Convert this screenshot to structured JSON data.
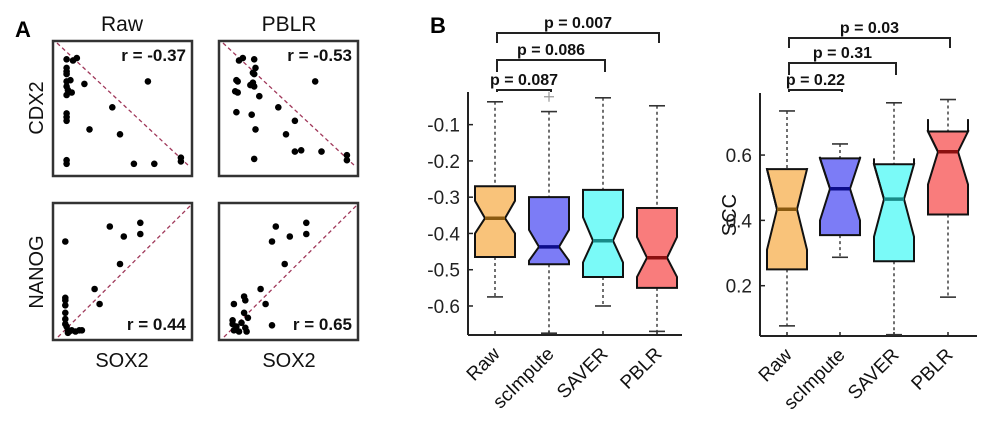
{
  "figure": {
    "panel_letters": [
      "A",
      "B"
    ]
  },
  "chart_data": [
    {
      "type": "scatter",
      "panel": "A",
      "column_titles": [
        "Raw",
        "PBLR"
      ],
      "row_labels": [
        "CDX2",
        "NANOG"
      ],
      "xlabel": "SOX2",
      "subplots": [
        {
          "title": "Raw",
          "ylabel": "CDX2",
          "xlabel": "SOX2",
          "r_label": "r = -0.37",
          "r": -0.37,
          "trend": "negative",
          "points": [
            [
              0.06,
              0.9
            ],
            [
              0.11,
              0.89
            ],
            [
              0.14,
              0.91
            ],
            [
              0.06,
              0.83
            ],
            [
              0.06,
              0.8
            ],
            [
              0.06,
              0.78
            ],
            [
              0.06,
              0.72
            ],
            [
              0.06,
              0.68
            ],
            [
              0.09,
              0.73
            ],
            [
              0.07,
              0.65
            ],
            [
              0.1,
              0.63
            ],
            [
              0.06,
              0.61
            ],
            [
              0.2,
              0.7
            ],
            [
              0.7,
              0.72
            ],
            [
              0.42,
              0.51
            ],
            [
              0.06,
              0.46
            ],
            [
              0.06,
              0.43
            ],
            [
              0.06,
              0.4
            ],
            [
              0.24,
              0.33
            ],
            [
              0.48,
              0.29
            ],
            [
              0.06,
              0.08
            ],
            [
              0.06,
              0.05
            ],
            [
              0.59,
              0.05
            ],
            [
              0.75,
              0.05
            ],
            [
              0.96,
              0.1
            ],
            [
              0.96,
              0.07
            ]
          ]
        },
        {
          "title": "PBLR",
          "ylabel": "CDX2",
          "xlabel": "SOX2",
          "r_label": "r = -0.53",
          "r": -0.53,
          "trend": "negative",
          "points": [
            [
              0.11,
              0.89
            ],
            [
              0.14,
              0.91
            ],
            [
              0.23,
              0.9
            ],
            [
              0.24,
              0.83
            ],
            [
              0.22,
              0.79
            ],
            [
              0.23,
              0.78
            ],
            [
              0.09,
              0.73
            ],
            [
              0.1,
              0.72
            ],
            [
              0.2,
              0.69
            ],
            [
              0.22,
              0.71
            ],
            [
              0.23,
              0.68
            ],
            [
              0.08,
              0.64
            ],
            [
              0.1,
              0.63
            ],
            [
              0.27,
              0.6
            ],
            [
              0.71,
              0.72
            ],
            [
              0.42,
              0.51
            ],
            [
              0.09,
              0.47
            ],
            [
              0.21,
              0.45
            ],
            [
              0.55,
              0.4
            ],
            [
              0.24,
              0.33
            ],
            [
              0.48,
              0.29
            ],
            [
              0.55,
              0.15
            ],
            [
              0.6,
              0.16
            ],
            [
              0.76,
              0.15
            ],
            [
              0.23,
              0.09
            ],
            [
              0.96,
              0.12
            ],
            [
              0.96,
              0.08
            ]
          ]
        },
        {
          "title": "Raw",
          "ylabel": "NANOG",
          "xlabel": "SOX2",
          "r_label": "r = 0.44",
          "r": 0.44,
          "trend": "positive",
          "points": [
            [
              0.05,
              0.74
            ],
            [
              0.4,
              0.86
            ],
            [
              0.51,
              0.78
            ],
            [
              0.64,
              0.89
            ],
            [
              0.64,
              0.8
            ],
            [
              0.48,
              0.56
            ],
            [
              0.28,
              0.36
            ],
            [
              0.32,
              0.24
            ],
            [
              0.05,
              0.29
            ],
            [
              0.05,
              0.27
            ],
            [
              0.05,
              0.23
            ],
            [
              0.05,
              0.17
            ],
            [
              0.05,
              0.12
            ],
            [
              0.05,
              0.08
            ],
            [
              0.06,
              0.06
            ],
            [
              0.07,
              0.03
            ],
            [
              0.08,
              0.02
            ],
            [
              0.1,
              0.03
            ],
            [
              0.13,
              0.02
            ],
            [
              0.16,
              0.03
            ],
            [
              0.18,
              0.03
            ],
            [
              0.07,
              0.01
            ]
          ]
        },
        {
          "title": "PBLR",
          "ylabel": "NANOG",
          "xlabel": "SOX2",
          "r_label": "r = 0.65",
          "r": 0.65,
          "trend": "positive",
          "points": [
            [
              0.4,
              0.86
            ],
            [
              0.37,
              0.74
            ],
            [
              0.51,
              0.78
            ],
            [
              0.64,
              0.89
            ],
            [
              0.64,
              0.8
            ],
            [
              0.47,
              0.56
            ],
            [
              0.28,
              0.36
            ],
            [
              0.32,
              0.24
            ],
            [
              0.07,
              0.24
            ],
            [
              0.15,
              0.3
            ],
            [
              0.16,
              0.27
            ],
            [
              0.15,
              0.17
            ],
            [
              0.06,
              0.11
            ],
            [
              0.06,
              0.08
            ],
            [
              0.09,
              0.06
            ],
            [
              0.13,
              0.09
            ],
            [
              0.18,
              0.13
            ],
            [
              0.16,
              0.05
            ],
            [
              0.17,
              0.02
            ],
            [
              0.11,
              0.02
            ],
            [
              0.07,
              0.03
            ],
            [
              0.37,
              0.07
            ]
          ]
        }
      ]
    },
    {
      "type": "boxplot",
      "panel": "B",
      "xlabel": "",
      "ylabel": "",
      "categories": [
        "Raw",
        "scImpute",
        "SAVER",
        "PBLR"
      ],
      "ylim": [
        -0.68,
        -0.01
      ],
      "yticks": [
        -0.6,
        -0.5,
        -0.4,
        -0.3,
        -0.2,
        -0.1
      ],
      "ytick_labels": [
        "-0.6",
        "-0.5",
        "-0.4",
        "-0.3",
        "-0.2",
        "-0.1"
      ],
      "colors": [
        "#F9C37A",
        "#7C7CF6",
        "#7AFAF8",
        "#F97C7C"
      ],
      "median_colors": [
        "#8A5A10",
        "#0D0D8A",
        "#188A88",
        "#8A1010"
      ],
      "boxes": [
        {
          "name": "Raw",
          "whisker_low": -0.575,
          "q1": -0.465,
          "median": -0.358,
          "q3": -0.27,
          "whisker_high": -0.037,
          "notch_low": -0.4,
          "notch_high": -0.31,
          "outliers": []
        },
        {
          "name": "scImpute",
          "whisker_low": -0.675,
          "q1": -0.485,
          "median": -0.437,
          "q3": -0.3,
          "whisker_high": -0.064,
          "notch_low": -0.475,
          "notch_high": -0.39,
          "outliers": [
            -0.023
          ]
        },
        {
          "name": "SAVER",
          "whisker_low": -0.6,
          "q1": -0.52,
          "median": -0.42,
          "q3": -0.28,
          "whisker_high": -0.026,
          "notch_low": -0.48,
          "notch_high": -0.355,
          "outliers": []
        },
        {
          "name": "PBLR",
          "whisker_low": -0.67,
          "q1": -0.55,
          "median": -0.467,
          "q3": -0.33,
          "whisker_high": -0.048,
          "notch_low": -0.52,
          "notch_high": -0.41,
          "outliers": []
        }
      ],
      "comparisons": [
        {
          "from": "Raw",
          "to": "scImpute",
          "label": "p = 0.087",
          "p": 0.087
        },
        {
          "from": "Raw",
          "to": "SAVER",
          "label": "p = 0.086",
          "p": 0.086
        },
        {
          "from": "Raw",
          "to": "PBLR",
          "label": "p = 0.007",
          "p": 0.007
        }
      ]
    },
    {
      "type": "boxplot",
      "panel": "B",
      "xlabel": "",
      "ylabel": "SCC",
      "categories": [
        "Raw",
        "scImpute",
        "SAVER",
        "PBLR"
      ],
      "ylim": [
        0.046,
        0.79
      ],
      "yticks": [
        0.2,
        0.4,
        0.6
      ],
      "ytick_labels": [
        "0.2",
        "0.4",
        "0.6"
      ],
      "colors": [
        "#F9C37A",
        "#7C7CF6",
        "#7AFAF8",
        "#F97C7C"
      ],
      "median_colors": [
        "#8A5A10",
        "#0D0D8A",
        "#188A88",
        "#8A1010"
      ],
      "boxes": [
        {
          "name": "Raw",
          "whisker_low": 0.077,
          "q1": 0.25,
          "median": 0.434,
          "q3": 0.557,
          "whisker_high": 0.735,
          "notch_low": 0.31,
          "notch_high": 0.56,
          "outliers": []
        },
        {
          "name": "scImpute",
          "whisker_low": 0.287,
          "q1": 0.355,
          "median": 0.497,
          "q3": 0.59,
          "whisker_high": 0.634,
          "notch_low": 0.4,
          "notch_high": 0.595,
          "outliers": []
        },
        {
          "name": "SAVER",
          "whisker_low": 0.05,
          "q1": 0.275,
          "median": 0.465,
          "q3": 0.572,
          "whisker_high": 0.76,
          "notch_low": 0.35,
          "notch_high": 0.59,
          "outliers": []
        },
        {
          "name": "PBLR",
          "whisker_low": 0.165,
          "q1": 0.418,
          "median": 0.61,
          "q3": 0.672,
          "whisker_high": 0.77,
          "notch_low": 0.51,
          "notch_high": 0.71,
          "outliers": []
        }
      ],
      "comparisons": [
        {
          "from": "Raw",
          "to": "scImpute",
          "label": "p = 0.22",
          "p": 0.22
        },
        {
          "from": "Raw",
          "to": "SAVER",
          "label": "p = 0.31",
          "p": 0.31
        },
        {
          "from": "Raw",
          "to": "PBLR",
          "label": "p = 0.03",
          "p": 0.03
        }
      ]
    }
  ]
}
